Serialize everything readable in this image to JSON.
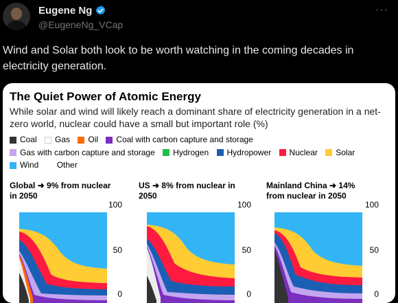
{
  "tweet": {
    "author_name": "Eugene Ng",
    "handle": "@EugeneNg_VCap",
    "more_label": "···",
    "text": "Wind and Solar both look to be worth watching in the coming decades in electricity generation."
  },
  "card": {
    "title": "The Quiet Power of Atomic Energy",
    "subtitle": "While solar and wind will likely reach a dominant share of electricity generation in a net-zero world, nuclear could have a small but important role (%)",
    "legend": [
      {
        "label": "Coal",
        "color": "#333333"
      },
      {
        "label": "Gas",
        "color": "#ffffff"
      },
      {
        "label": "Oil",
        "color": "#ff6b00"
      },
      {
        "label": "Coal with carbon capture and storage",
        "color": "#7b2fbe"
      },
      {
        "label": "Gas with carbon capture and storage",
        "color": "#c3a6f0"
      },
      {
        "label": "Hydrogen",
        "color": "#1fbf4a"
      },
      {
        "label": "Hydropower",
        "color": "#1a5fb4"
      },
      {
        "label": "Nuclear",
        "color": "#ff1a40"
      },
      {
        "label": "Solar",
        "color": "#ffcc33"
      },
      {
        "label": "Wind",
        "color": "#33b5f5"
      },
      {
        "label": "Other",
        "color": "#ffffff"
      }
    ],
    "panels": [
      {
        "title_line1": "Global ➜ 9% from nuclear",
        "title_line2": "in 2050",
        "tick_100": "100",
        "tick_50": "50",
        "tick_0": "0"
      },
      {
        "title_line1": "US ➜ 8% from nuclear in",
        "title_line2": "2050",
        "tick_100": "100",
        "tick_50": "50",
        "tick_0": "0"
      },
      {
        "title_line1": "Mainland China ➜ 14%",
        "title_line2": "from nuclear in 2050",
        "tick_100": "100",
        "tick_50": "50",
        "tick_0": "0"
      }
    ]
  }
}
